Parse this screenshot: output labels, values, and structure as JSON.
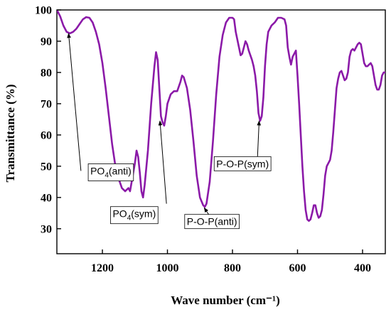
{
  "chart_data": {
    "type": "line",
    "xlabel": "Wave number (cm⁻¹)",
    "ylabel": "Transmittance (%)",
    "xlim": [
      1340,
      330
    ],
    "ylim": [
      22,
      100
    ],
    "x_reversed": true,
    "grid": false,
    "x_ticks": [
      1200,
      1000,
      800,
      600,
      400
    ],
    "y_ticks": [
      30,
      40,
      50,
      60,
      70,
      80,
      90,
      100
    ],
    "line_color": "#8b1aa8",
    "series": [
      {
        "points": [
          [
            1340,
            100
          ],
          [
            1330,
            98
          ],
          [
            1320,
            95
          ],
          [
            1310,
            93
          ],
          [
            1300,
            92.5
          ],
          [
            1290,
            93
          ],
          [
            1280,
            94
          ],
          [
            1270,
            95.5
          ],
          [
            1260,
            97
          ],
          [
            1250,
            97.7
          ],
          [
            1240,
            97.5
          ],
          [
            1230,
            96
          ],
          [
            1220,
            93
          ],
          [
            1210,
            89
          ],
          [
            1200,
            83
          ],
          [
            1190,
            75
          ],
          [
            1180,
            66
          ],
          [
            1170,
            57
          ],
          [
            1160,
            50
          ],
          [
            1150,
            46
          ],
          [
            1140,
            43
          ],
          [
            1130,
            42
          ],
          [
            1125,
            42.5
          ],
          [
            1120,
            43
          ],
          [
            1115,
            42
          ],
          [
            1110,
            45
          ],
          [
            1100,
            51
          ],
          [
            1095,
            55
          ],
          [
            1090,
            53
          ],
          [
            1085,
            48
          ],
          [
            1080,
            42
          ],
          [
            1075,
            40
          ],
          [
            1070,
            44
          ],
          [
            1060,
            55
          ],
          [
            1050,
            70
          ],
          [
            1040,
            82
          ],
          [
            1035,
            86.5
          ],
          [
            1030,
            84
          ],
          [
            1025,
            75
          ],
          [
            1020,
            66
          ],
          [
            1015,
            64
          ],
          [
            1010,
            63
          ],
          [
            1005,
            66
          ],
          [
            1000,
            70
          ],
          [
            990,
            73
          ],
          [
            980,
            74
          ],
          [
            970,
            74
          ],
          [
            960,
            77
          ],
          [
            955,
            79
          ],
          [
            950,
            78.5
          ],
          [
            940,
            75
          ],
          [
            930,
            68
          ],
          [
            920,
            58
          ],
          [
            910,
            47
          ],
          [
            900,
            40
          ],
          [
            890,
            37.5
          ],
          [
            885,
            37
          ],
          [
            880,
            38
          ],
          [
            870,
            45
          ],
          [
            860,
            58
          ],
          [
            850,
            73
          ],
          [
            840,
            85
          ],
          [
            830,
            92
          ],
          [
            820,
            96
          ],
          [
            810,
            97.5
          ],
          [
            800,
            97.5
          ],
          [
            795,
            97
          ],
          [
            790,
            93
          ],
          [
            780,
            88
          ],
          [
            775,
            85.5
          ],
          [
            770,
            86
          ],
          [
            765,
            88
          ],
          [
            760,
            90
          ],
          [
            755,
            89
          ],
          [
            750,
            87
          ],
          [
            740,
            84
          ],
          [
            735,
            82
          ],
          [
            730,
            79
          ],
          [
            725,
            74
          ],
          [
            720,
            67
          ],
          [
            715,
            64.5
          ],
          [
            710,
            66
          ],
          [
            705,
            72
          ],
          [
            700,
            82
          ],
          [
            695,
            89
          ],
          [
            690,
            93
          ],
          [
            680,
            95
          ],
          [
            670,
            96
          ],
          [
            660,
            97.5
          ],
          [
            650,
            97.5
          ],
          [
            640,
            97
          ],
          [
            635,
            95
          ],
          [
            630,
            88
          ],
          [
            625,
            85
          ],
          [
            620,
            82.5
          ],
          [
            615,
            85
          ],
          [
            610,
            86
          ],
          [
            605,
            87
          ],
          [
            600,
            79
          ],
          [
            595,
            70
          ],
          [
            590,
            60
          ],
          [
            585,
            50
          ],
          [
            580,
            42
          ],
          [
            575,
            36
          ],
          [
            570,
            33
          ],
          [
            565,
            32.5
          ],
          [
            560,
            33
          ],
          [
            555,
            35
          ],
          [
            550,
            37.5
          ],
          [
            545,
            37.5
          ],
          [
            540,
            35
          ],
          [
            535,
            33.5
          ],
          [
            530,
            34
          ],
          [
            525,
            36
          ],
          [
            520,
            41
          ],
          [
            515,
            47
          ],
          [
            510,
            50
          ],
          [
            505,
            51
          ],
          [
            500,
            52
          ],
          [
            495,
            55
          ],
          [
            490,
            61
          ],
          [
            485,
            68
          ],
          [
            480,
            75
          ],
          [
            475,
            78
          ],
          [
            470,
            80
          ],
          [
            465,
            80.5
          ],
          [
            460,
            79
          ],
          [
            455,
            77.5
          ],
          [
            450,
            78
          ],
          [
            445,
            80
          ],
          [
            440,
            85
          ],
          [
            435,
            87
          ],
          [
            430,
            87.5
          ],
          [
            425,
            87
          ],
          [
            420,
            88
          ],
          [
            415,
            89
          ],
          [
            410,
            89.5
          ],
          [
            405,
            89
          ],
          [
            400,
            86
          ],
          [
            395,
            83
          ],
          [
            390,
            82
          ],
          [
            385,
            82
          ],
          [
            380,
            82.5
          ],
          [
            375,
            83
          ],
          [
            370,
            82
          ],
          [
            365,
            79
          ],
          [
            360,
            76
          ],
          [
            355,
            74.5
          ],
          [
            350,
            74.5
          ],
          [
            345,
            76
          ],
          [
            340,
            79
          ],
          [
            335,
            80
          ],
          [
            330,
            80
          ]
        ]
      }
    ],
    "annotations": [
      {
        "id": "po4-anti",
        "base": "PO",
        "sub": "4",
        "suffix": "(anti)",
        "x": 1174,
        "y": 48.5
      },
      {
        "id": "po4-sym",
        "base": "PO",
        "sub": "4",
        "suffix": "(sym)",
        "x": 1102,
        "y": 34.8
      },
      {
        "id": "pop-anti",
        "base": "P-O-P(anti)",
        "sub": "",
        "suffix": "",
        "x": 863,
        "y": 32.3
      },
      {
        "id": "pop-sym",
        "base": "P-O-P(sym)",
        "sub": "",
        "suffix": "",
        "x": 769,
        "y": 50.8
      }
    ],
    "arrows": [
      {
        "id": "po4-anti-arrow",
        "from": [
          1266,
          48.5
        ],
        "to": [
          1304,
          92.5
        ],
        "style": "line-arrow"
      },
      {
        "id": "po4-anti-arrow2",
        "from": [
          1205,
          50
        ],
        "to": [
          1152,
          45.5
        ],
        "style": "line-arrow"
      },
      {
        "id": "po4-sym-arrow",
        "from": [
          1003,
          38
        ],
        "to": [
          1023,
          64.5
        ],
        "style": "line-arrow"
      },
      {
        "id": "pop-anti-arrow",
        "from": [
          863,
          33
        ],
        "to": [
          887,
          36.7
        ],
        "style": "line-arrow"
      },
      {
        "id": "pop-sym-arrow",
        "from": [
          723,
          53
        ],
        "to": [
          718,
          64.5
        ],
        "style": "line-arrow"
      }
    ]
  }
}
